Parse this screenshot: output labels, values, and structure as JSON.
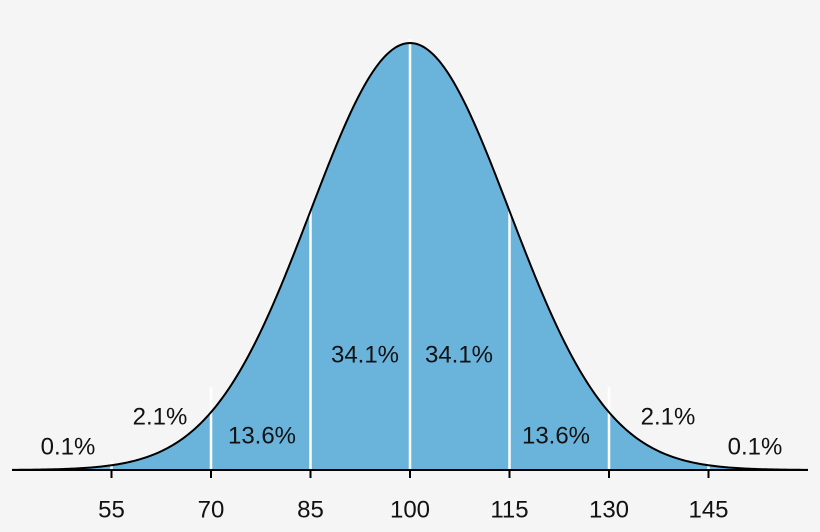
{
  "chart_data": {
    "type": "normal",
    "xlim": [
      40,
      160
    ],
    "xticks": [
      55,
      70,
      85,
      100,
      115,
      130,
      145
    ],
    "values": [
      0.1,
      2.1,
      13.6,
      34.1,
      34.1,
      13.6,
      2.1,
      0.1
    ],
    "value_labels": [
      "0.1%",
      "2.1%",
      "13.6%",
      "34.1%",
      "34.1%",
      "13.6%",
      "2.1%",
      "0.1%"
    ],
    "color": "#6ab4dc"
  }
}
